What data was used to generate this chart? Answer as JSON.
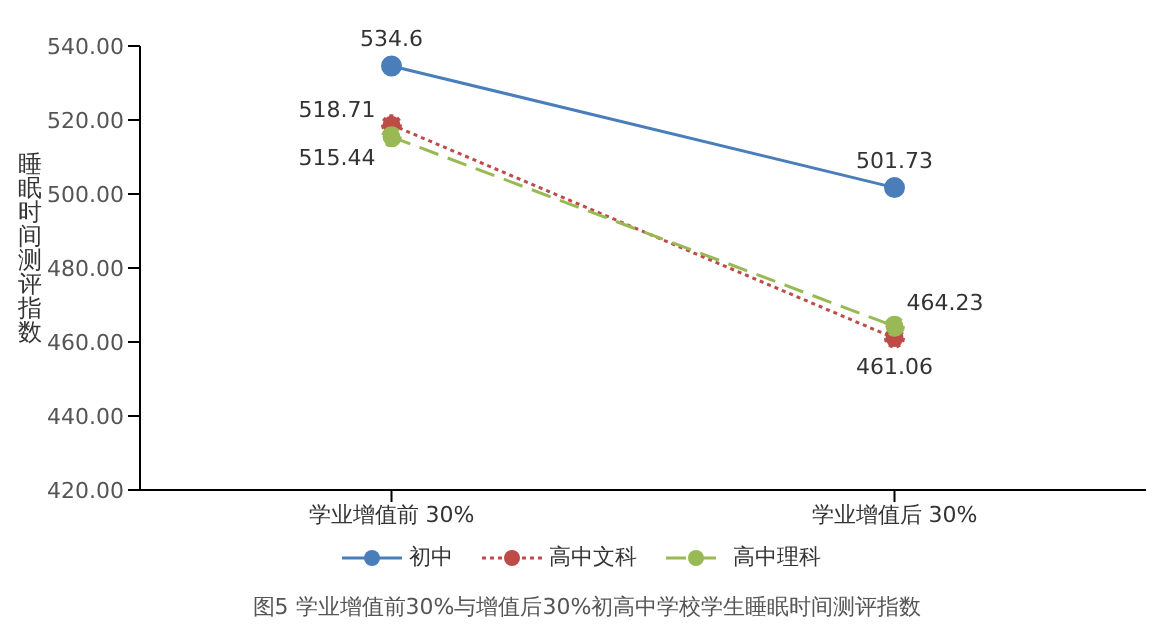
{
  "chart_data": {
    "type": "line",
    "title": "图5 学业增值前30%与增值后30%初高中学校学生睡眠时间测评指数",
    "ylabel": "睡眠时间测评指数",
    "categories": [
      "学业增值前 30%",
      "学业增值后 30%"
    ],
    "series": [
      {
        "name": "初中",
        "color": "#4a7ebb",
        "values": [
          534.6,
          501.73
        ],
        "line_style": "solid"
      },
      {
        "name": "高中文科",
        "color": "#be4b48",
        "values": [
          518.71,
          461.06
        ],
        "line_style": "dotted"
      },
      {
        "name": "高中理科",
        "color": "#98b954",
        "values": [
          515.44,
          464.23
        ],
        "line_style": "dashed"
      }
    ],
    "ylim": [
      420,
      540
    ],
    "yticks": [
      {
        "value": 420,
        "label": "420.00"
      },
      {
        "value": 440,
        "label": "440.00"
      },
      {
        "value": 460,
        "label": "460.00"
      },
      {
        "value": 480,
        "label": "480.00"
      },
      {
        "value": 500,
        "label": "500.00"
      },
      {
        "value": 520,
        "label": "520.00"
      },
      {
        "value": 540,
        "label": "540.00"
      }
    ],
    "grid": false,
    "legend": "bottom",
    "marker": "circle",
    "data_labels": true
  }
}
